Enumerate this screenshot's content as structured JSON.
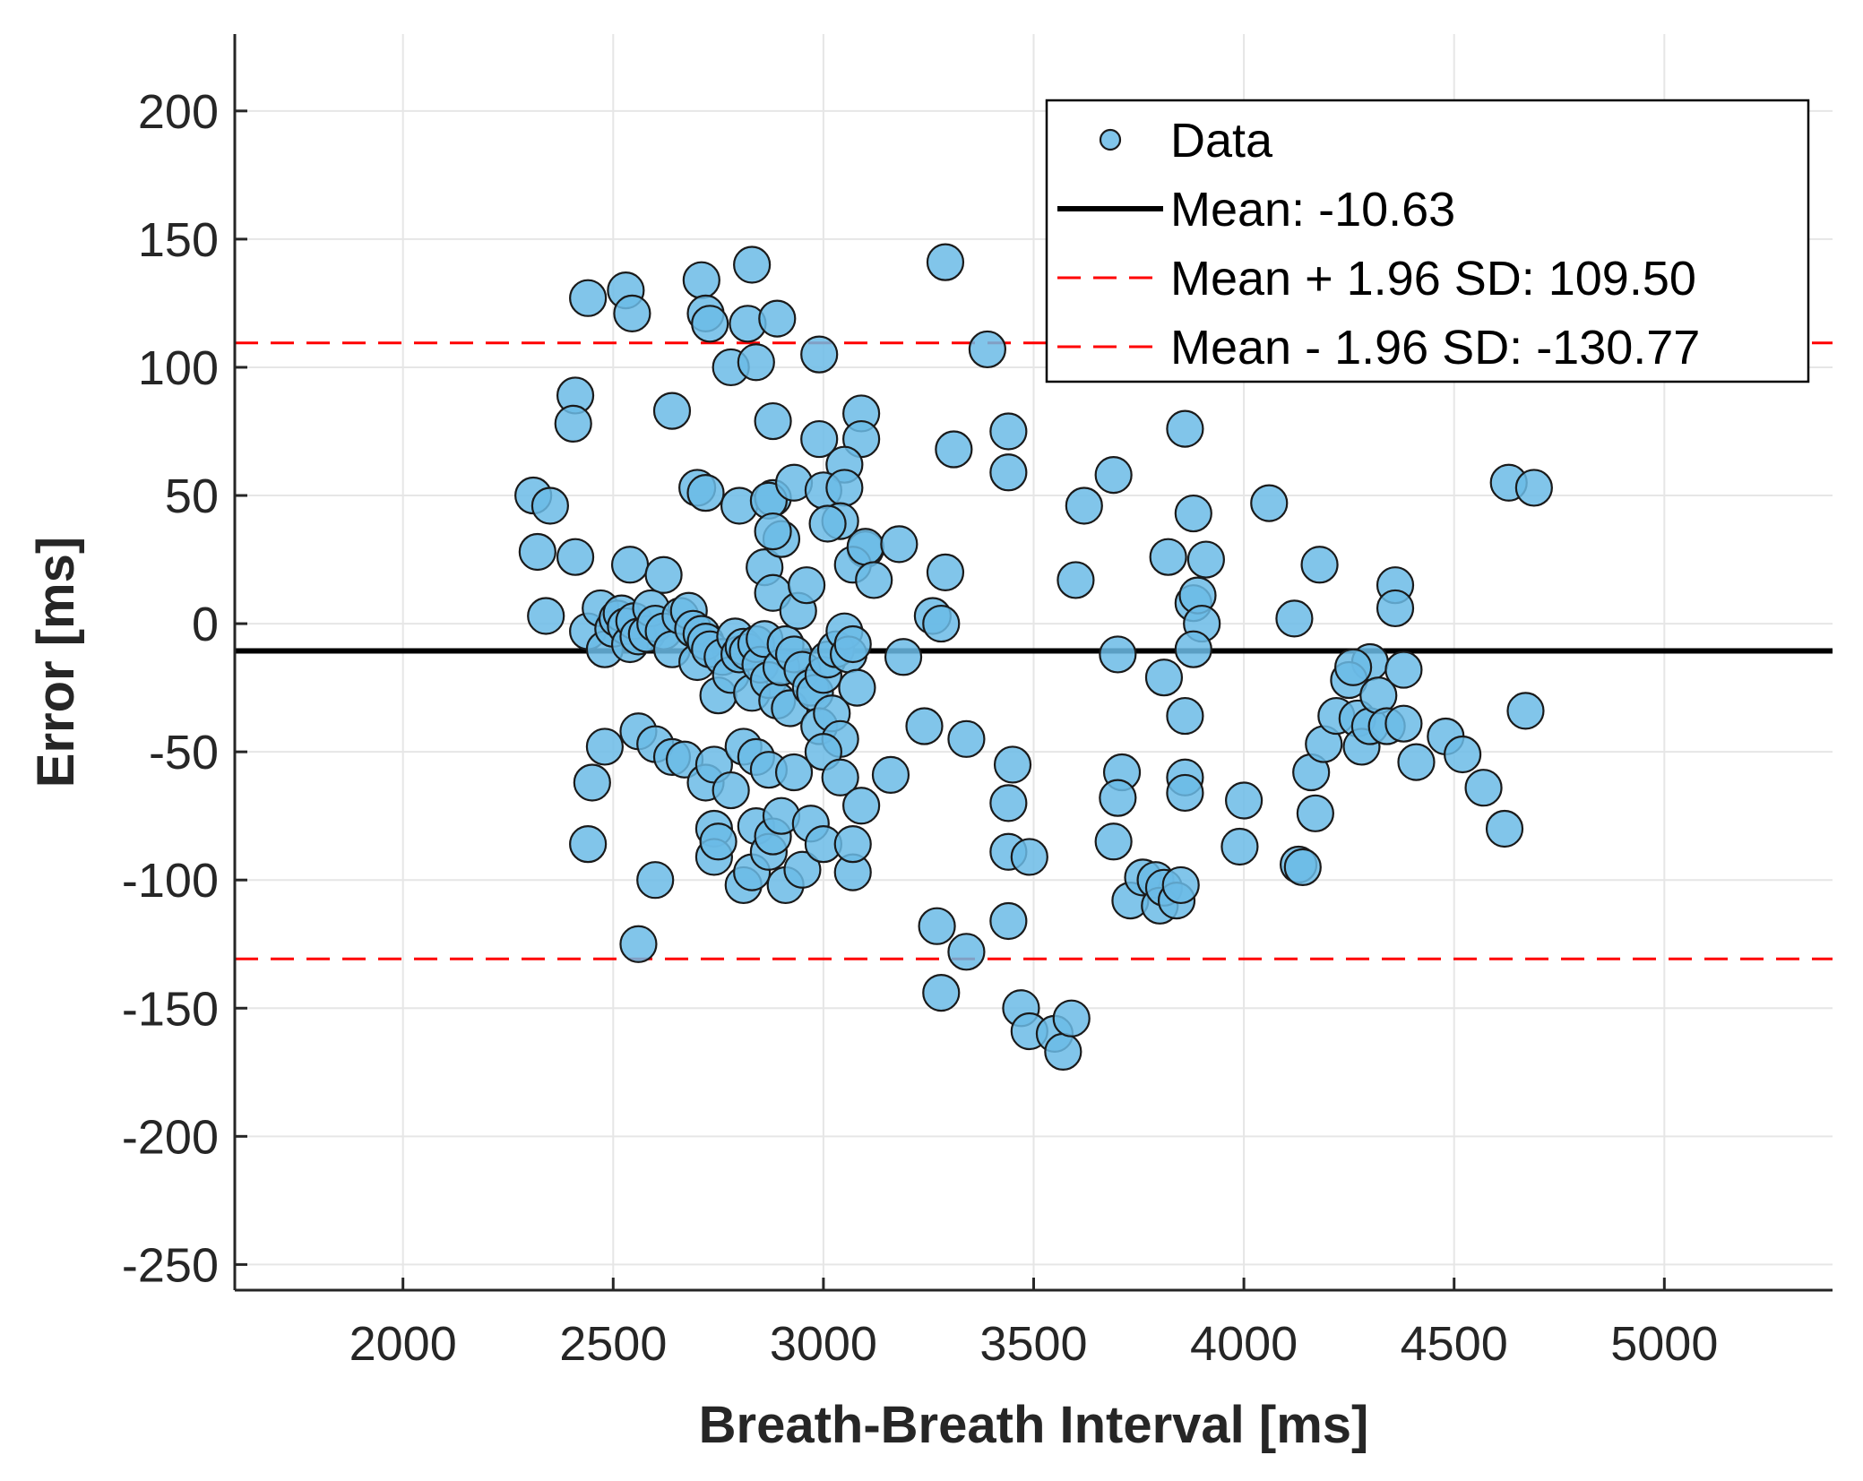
{
  "chart_data": {
    "type": "scatter",
    "title": "",
    "xlabel": "Breath-Breath Interval [ms]",
    "ylabel": "Error [ms]",
    "xlim": [
      1600,
      5400
    ],
    "ylim": [
      -260,
      230
    ],
    "xticks": [
      2000,
      2500,
      3000,
      3500,
      4000,
      4500,
      5000
    ],
    "yticks": [
      200,
      150,
      100,
      50,
      0,
      -50,
      -100,
      -150,
      -200,
      -250
    ],
    "grid": true,
    "legend_position": "top-right",
    "colors": {
      "points": "#6bbbe6",
      "mean_line": "#000000",
      "limit_lines": "#ff0000"
    },
    "reference_lines": [
      {
        "name": "Mean: -10.63",
        "value": -10.63,
        "style": "solid",
        "color": "#000000"
      },
      {
        "name": "Mean + 1.96 SD: 109.50",
        "value": 109.5,
        "style": "dashed",
        "color": "#ff0000"
      },
      {
        "name": "Mean - 1.96 SD: -130.77",
        "value": -130.77,
        "style": "dashed",
        "color": "#ff0000"
      }
    ],
    "legend": [
      {
        "label": "Data",
        "kind": "marker"
      },
      {
        "label": "Mean: -10.63",
        "kind": "solid"
      },
      {
        "label": "Mean + 1.96 SD: 109.50",
        "kind": "dashed"
      },
      {
        "label": "Mean - 1.96 SD: -130.77",
        "kind": "dashed"
      }
    ],
    "series": [
      {
        "name": "Data",
        "points": [
          [
            2440,
            127
          ],
          [
            2530,
            130
          ],
          [
            2545,
            121
          ],
          [
            2710,
            134
          ],
          [
            2720,
            121
          ],
          [
            2730,
            117
          ],
          [
            2830,
            140
          ],
          [
            2820,
            117
          ],
          [
            2890,
            119
          ],
          [
            2990,
            105
          ],
          [
            3290,
            141
          ],
          [
            3390,
            107
          ],
          [
            2780,
            100
          ],
          [
            2840,
            102
          ],
          [
            2410,
            89
          ],
          [
            2405,
            78
          ],
          [
            2640,
            83
          ],
          [
            2880,
            79
          ],
          [
            3090,
            82
          ],
          [
            3090,
            72
          ],
          [
            2990,
            72
          ],
          [
            3310,
            68
          ],
          [
            3440,
            75
          ],
          [
            3440,
            59
          ],
          [
            3860,
            76
          ],
          [
            3050,
            62
          ],
          [
            2310,
            50
          ],
          [
            2350,
            46
          ],
          [
            2700,
            53
          ],
          [
            2720,
            51
          ],
          [
            2800,
            46
          ],
          [
            2880,
            49
          ],
          [
            2870,
            48
          ],
          [
            2930,
            55
          ],
          [
            3000,
            52
          ],
          [
            3050,
            53
          ],
          [
            3100,
            29
          ],
          [
            3620,
            46
          ],
          [
            3690,
            58
          ],
          [
            3880,
            43
          ],
          [
            4060,
            47
          ],
          [
            4630,
            55
          ],
          [
            4690,
            53
          ],
          [
            2320,
            28
          ],
          [
            2410,
            26
          ],
          [
            2540,
            23
          ],
          [
            2620,
            19
          ],
          [
            2860,
            22
          ],
          [
            2900,
            33
          ],
          [
            2880,
            36
          ],
          [
            3040,
            40
          ],
          [
            3010,
            39
          ],
          [
            3070,
            23
          ],
          [
            3100,
            30
          ],
          [
            3120,
            17
          ],
          [
            3180,
            31
          ],
          [
            3290,
            20
          ],
          [
            3600,
            17
          ],
          [
            3820,
            26
          ],
          [
            3910,
            25
          ],
          [
            3880,
            8
          ],
          [
            3890,
            11
          ],
          [
            4180,
            23
          ],
          [
            4360,
            15
          ],
          [
            4360,
            6
          ],
          [
            4120,
            2
          ],
          [
            2340,
            3
          ],
          [
            2440,
            -3
          ],
          [
            2470,
            6
          ],
          [
            2480,
            -10
          ],
          [
            2500,
            -2
          ],
          [
            2510,
            2
          ],
          [
            2520,
            4
          ],
          [
            2530,
            -1
          ],
          [
            2540,
            -8
          ],
          [
            2550,
            1
          ],
          [
            2560,
            -5
          ],
          [
            2580,
            -4
          ],
          [
            2590,
            6
          ],
          [
            2600,
            0
          ],
          [
            2620,
            -3
          ],
          [
            2640,
            -10
          ],
          [
            2660,
            3
          ],
          [
            2680,
            5
          ],
          [
            2690,
            -2
          ],
          [
            2700,
            -15
          ],
          [
            2710,
            -4
          ],
          [
            2720,
            -7
          ],
          [
            2730,
            -10
          ],
          [
            2750,
            -28
          ],
          [
            2760,
            -13
          ],
          [
            2780,
            -20
          ],
          [
            2790,
            -5
          ],
          [
            2800,
            -12
          ],
          [
            2810,
            -9
          ],
          [
            2820,
            -11
          ],
          [
            2830,
            -27
          ],
          [
            2840,
            -8
          ],
          [
            2850,
            -16
          ],
          [
            2860,
            -6
          ],
          [
            2870,
            -22
          ],
          [
            2880,
            12
          ],
          [
            2890,
            -30
          ],
          [
            2900,
            -17
          ],
          [
            2910,
            -8
          ],
          [
            2920,
            -33
          ],
          [
            2930,
            -12
          ],
          [
            2940,
            5
          ],
          [
            2950,
            -18
          ],
          [
            2960,
            15
          ],
          [
            2970,
            -25
          ],
          [
            2980,
            -27
          ],
          [
            2990,
            -40
          ],
          [
            3000,
            -20
          ],
          [
            3010,
            -14
          ],
          [
            3020,
            -35
          ],
          [
            3030,
            -10
          ],
          [
            3040,
            -45
          ],
          [
            3050,
            -3
          ],
          [
            3060,
            -12
          ],
          [
            3070,
            -8
          ],
          [
            3080,
            -25
          ],
          [
            3190,
            -13
          ],
          [
            3260,
            3
          ],
          [
            3280,
            0
          ],
          [
            3900,
            0
          ],
          [
            3880,
            -10
          ],
          [
            3700,
            -12
          ],
          [
            4300,
            -15
          ],
          [
            2480,
            -48
          ],
          [
            2560,
            -42
          ],
          [
            2600,
            -47
          ],
          [
            2640,
            -52
          ],
          [
            2670,
            -53
          ],
          [
            2720,
            -62
          ],
          [
            2740,
            -55
          ],
          [
            2780,
            -65
          ],
          [
            2810,
            -48
          ],
          [
            2840,
            -52
          ],
          [
            2870,
            -57
          ],
          [
            2930,
            -58
          ],
          [
            3000,
            -50
          ],
          [
            3040,
            -60
          ],
          [
            3160,
            -59
          ],
          [
            3240,
            -40
          ],
          [
            3340,
            -45
          ],
          [
            3450,
            -55
          ],
          [
            3440,
            -70
          ],
          [
            3710,
            -58
          ],
          [
            3700,
            -68
          ],
          [
            3810,
            -21
          ],
          [
            3860,
            -36
          ],
          [
            3860,
            -60
          ],
          [
            3860,
            -66
          ],
          [
            4000,
            -69
          ],
          [
            4160,
            -58
          ],
          [
            4170,
            -74
          ],
          [
            4190,
            -47
          ],
          [
            4220,
            -36
          ],
          [
            4250,
            -22
          ],
          [
            4260,
            -17
          ],
          [
            4270,
            -37
          ],
          [
            4280,
            -48
          ],
          [
            4300,
            -40
          ],
          [
            4320,
            -28
          ],
          [
            4340,
            -40
          ],
          [
            4380,
            -18
          ],
          [
            4380,
            -39
          ],
          [
            4410,
            -54
          ],
          [
            4480,
            -44
          ],
          [
            4520,
            -51
          ],
          [
            4570,
            -64
          ],
          [
            4620,
            -80
          ],
          [
            4670,
            -34
          ],
          [
            2440,
            -86
          ],
          [
            2450,
            -62
          ],
          [
            2600,
            -100
          ],
          [
            2740,
            -80
          ],
          [
            2740,
            -91
          ],
          [
            2750,
            -85
          ],
          [
            2810,
            -102
          ],
          [
            2830,
            -97
          ],
          [
            2840,
            -79
          ],
          [
            2870,
            -89
          ],
          [
            2880,
            -83
          ],
          [
            2900,
            -75
          ],
          [
            2910,
            -102
          ],
          [
            2950,
            -96
          ],
          [
            2970,
            -78
          ],
          [
            3000,
            -86
          ],
          [
            3070,
            -97
          ],
          [
            3070,
            -86
          ],
          [
            3090,
            -71
          ],
          [
            3440,
            -89
          ],
          [
            3490,
            -91
          ],
          [
            3690,
            -85
          ],
          [
            3730,
            -108
          ],
          [
            3760,
            -99
          ],
          [
            3790,
            -100
          ],
          [
            3800,
            -110
          ],
          [
            3810,
            -103
          ],
          [
            3840,
            -108
          ],
          [
            3850,
            -102
          ],
          [
            3990,
            -87
          ],
          [
            4130,
            -94
          ],
          [
            4140,
            -95
          ],
          [
            2560,
            -125
          ],
          [
            3270,
            -118
          ],
          [
            3340,
            -128
          ],
          [
            3440,
            -116
          ],
          [
            3280,
            -144
          ],
          [
            3470,
            -150
          ],
          [
            3490,
            -159
          ],
          [
            3550,
            -160
          ],
          [
            3570,
            -167
          ],
          [
            3590,
            -154
          ]
        ]
      }
    ]
  }
}
